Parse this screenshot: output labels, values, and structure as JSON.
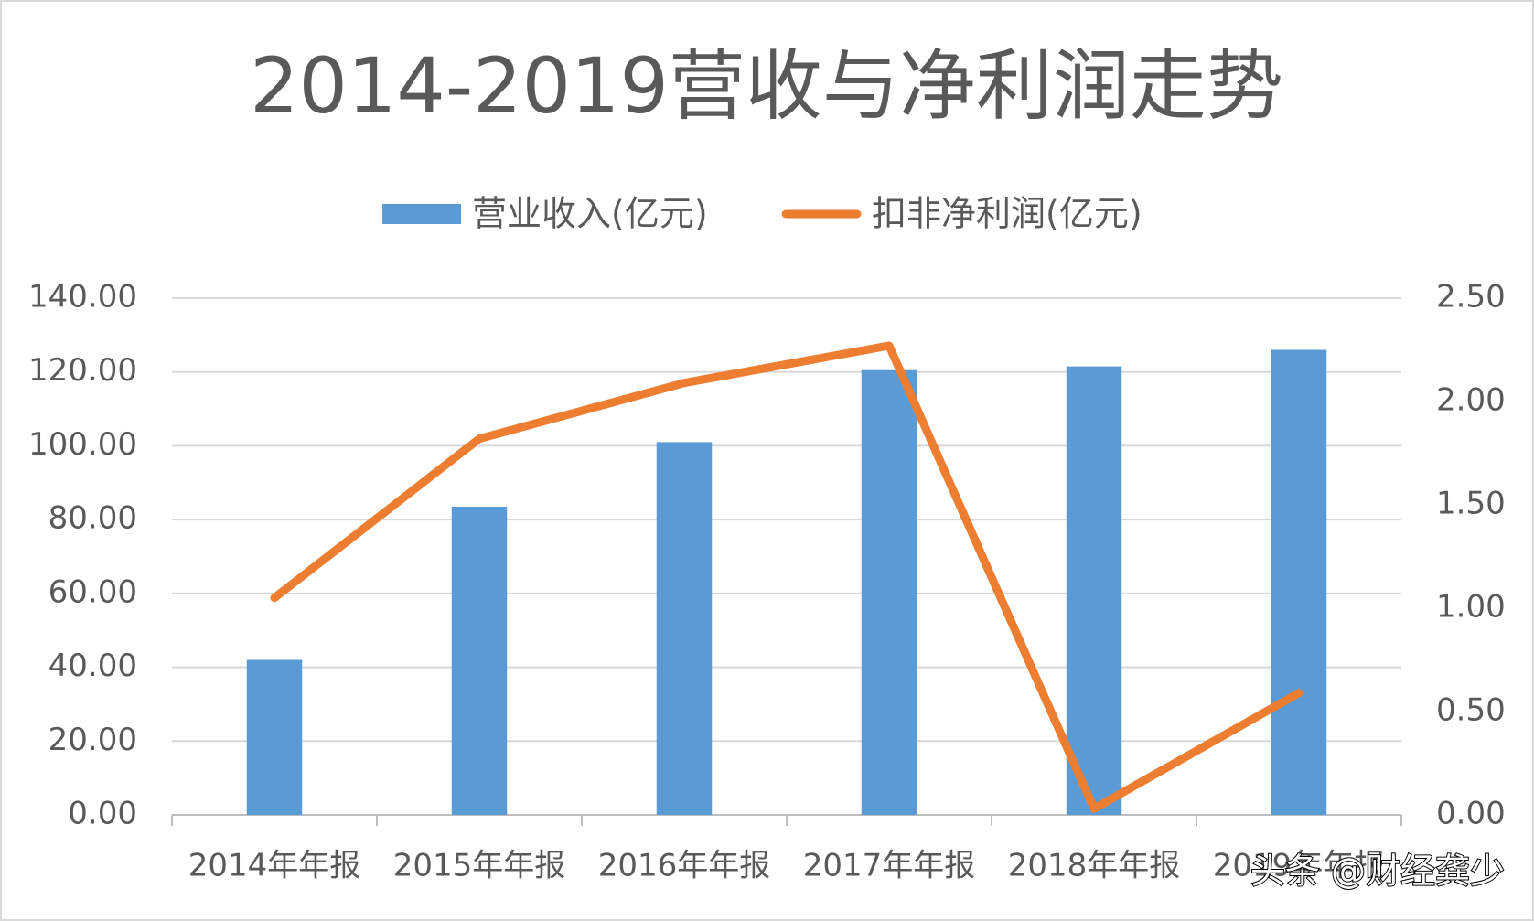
{
  "chart_data": {
    "type": "bar_line",
    "title": "2014-2019营收与净利润走势",
    "categories": [
      "2014年年报",
      "2015年年报",
      "2016年年报",
      "2017年年报",
      "2018年年报",
      "2019年年报"
    ],
    "series": [
      {
        "name": "营业收入(亿元)",
        "type": "bar",
        "color": "#5b9bd5",
        "values": [
          42,
          83.5,
          101,
          120.5,
          121.5,
          126
        ]
      },
      {
        "name": "扣非净利润(亿元)",
        "type": "line",
        "axis": "y2",
        "color": "#ed7d31",
        "values": [
          1.05,
          1.82,
          2.09,
          2.27,
          0.03,
          0.59
        ]
      }
    ],
    "ylim": [
      0,
      140
    ],
    "yticks": [
      {
        "value": 0,
        "label": "0.00"
      },
      {
        "value": 20,
        "label": "20.00"
      },
      {
        "value": 40,
        "label": "40.00"
      },
      {
        "value": 60,
        "label": "60.00"
      },
      {
        "value": 80,
        "label": "80.00"
      },
      {
        "value": 100,
        "label": "100.00"
      },
      {
        "value": 120,
        "label": "120.00"
      },
      {
        "value": 140,
        "label": "140.00"
      }
    ],
    "y2lim": [
      0,
      2.5
    ],
    "y2ticks": [
      {
        "value": 0,
        "label": "0.00"
      },
      {
        "value": 0.5,
        "label": "0.50"
      },
      {
        "value": 1,
        "label": "1.00"
      },
      {
        "value": 1.5,
        "label": "1.50"
      },
      {
        "value": 2,
        "label": "2.00"
      },
      {
        "value": 2.5,
        "label": "2.50"
      }
    ],
    "grid": true,
    "legend": "top",
    "watermark": "头条 @财经龚少"
  }
}
